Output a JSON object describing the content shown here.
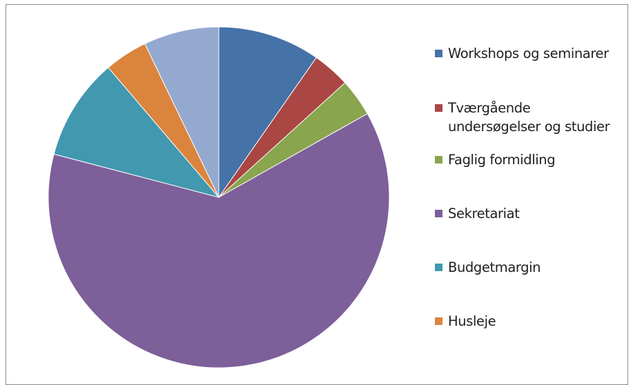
{
  "chart_data": {
    "type": "pie",
    "title": "",
    "legend_position": "right",
    "slices": [
      {
        "label": "Workshops og seminarer",
        "value": 9.5,
        "color": "#4572A7"
      },
      {
        "label": "Tværgående\nundersøgelser og studier",
        "value": 3.5,
        "color": "#AA4643"
      },
      {
        "label": "Faglig formidling",
        "value": 3.5,
        "color": "#89A54E"
      },
      {
        "label": "Sekretariat",
        "value": 61,
        "color": "#7D5F9A"
      },
      {
        "label": "Budgetmargin",
        "value": 9.5,
        "color": "#4198AF"
      },
      {
        "label": "Husleje",
        "value": 4,
        "color": "#DB843D"
      },
      {
        "label": "",
        "value": 7,
        "color": "#93A9CF"
      }
    ]
  }
}
